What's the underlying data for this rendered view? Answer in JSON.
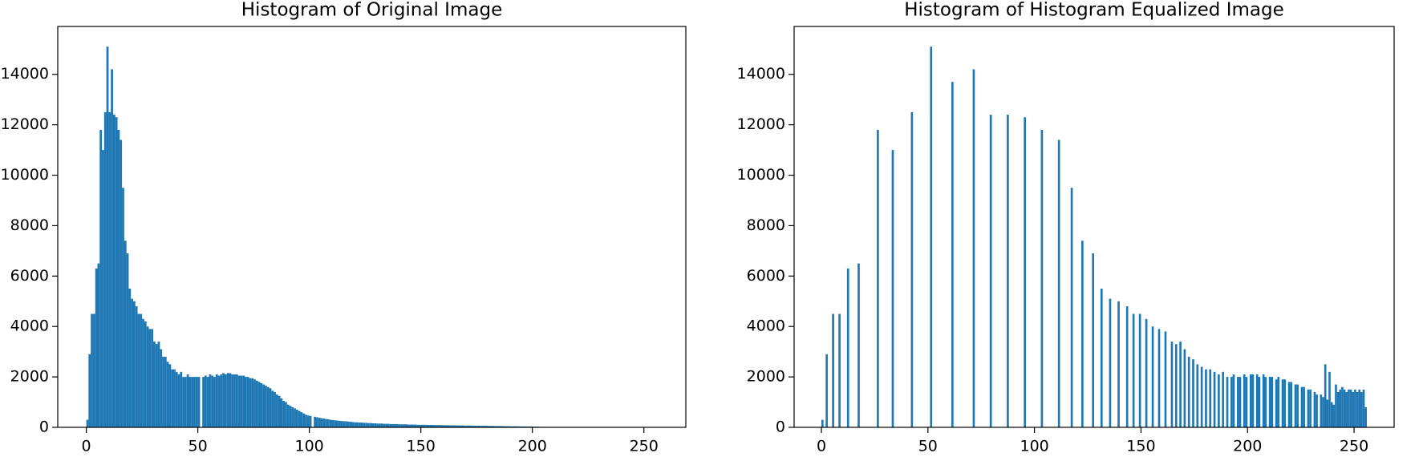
{
  "chart_data": [
    {
      "type": "histogram",
      "title": "Histogram of Original Image",
      "color": "#1f77b4",
      "bins": [
        0,
        1,
        2,
        3,
        4,
        5,
        6,
        7,
        8,
        9,
        10,
        11,
        12,
        13,
        14,
        15,
        16,
        17,
        18,
        19,
        20,
        21,
        22,
        23,
        24,
        25,
        26,
        27,
        28,
        29,
        30,
        31,
        32,
        33,
        34,
        35,
        36,
        37,
        38,
        39,
        40,
        41,
        42,
        43,
        44,
        45,
        46,
        47,
        48,
        49,
        50,
        51,
        52,
        53,
        54,
        55,
        56,
        57,
        58,
        59,
        60,
        61,
        62,
        63,
        64,
        65,
        66,
        67,
        68,
        69,
        70,
        71,
        72,
        73,
        74,
        75,
        76,
        77,
        78,
        79,
        80,
        81,
        82,
        83,
        84,
        85,
        86,
        87,
        88,
        89,
        90,
        91,
        92,
        93,
        94,
        95,
        96,
        97,
        98,
        99,
        100,
        101,
        102,
        103,
        104,
        105,
        106,
        107,
        108,
        109,
        110,
        111,
        112,
        113,
        114,
        115,
        116,
        117,
        118,
        119,
        120,
        121,
        122,
        123,
        124,
        125,
        126,
        127,
        128,
        129,
        130,
        131,
        132,
        133,
        134,
        135,
        136,
        137,
        138,
        139,
        140,
        141,
        142,
        143,
        144,
        145,
        146,
        147,
        148,
        149,
        150,
        151,
        152,
        153,
        154,
        155,
        156,
        157,
        158,
        159,
        160,
        161,
        162,
        163,
        164,
        165,
        166,
        167,
        168,
        169,
        170,
        171,
        172,
        173,
        174,
        175,
        176,
        177,
        178,
        179,
        180,
        181,
        182,
        183,
        184,
        185,
        186,
        187,
        188,
        189,
        190,
        191,
        192,
        193,
        194,
        195,
        196,
        197,
        198,
        199,
        200,
        201,
        202,
        203,
        204,
        205,
        206,
        207,
        208,
        209,
        210,
        211,
        212,
        213,
        214,
        215,
        216,
        217,
        218,
        219,
        220,
        221,
        222,
        223,
        224,
        225,
        226,
        227,
        228,
        229,
        230,
        231,
        232,
        233,
        234,
        235,
        236,
        237,
        238,
        239,
        240,
        241,
        242,
        243,
        244,
        245,
        246,
        247,
        248,
        249,
        250,
        251,
        252,
        253,
        254,
        255,
        256
      ],
      "values": [
        300,
        2900,
        4500,
        4500,
        6300,
        6500,
        11800,
        11000,
        12500,
        15100,
        12500,
        14200,
        12400,
        12300,
        11800,
        11400,
        9500,
        7400,
        6900,
        5500,
        5100,
        5000,
        4800,
        4500,
        4500,
        4300,
        4200,
        4000,
        3900,
        3900,
        3400,
        3300,
        3400,
        3100,
        2800,
        2800,
        2600,
        2500,
        2300,
        2300,
        2200,
        2100,
        2200,
        2000,
        2000,
        2100,
        2000,
        2000,
        2000,
        2000,
        2000,
        0,
        2000,
        2050,
        2000,
        2100,
        2050,
        2000,
        2100,
        2050,
        2100,
        2150,
        2100,
        2150,
        2150,
        2100,
        2100,
        2100,
        2050,
        2050,
        2050,
        2000,
        2000,
        1950,
        1950,
        1900,
        1850,
        1800,
        1750,
        1700,
        1650,
        1600,
        1550,
        1450,
        1400,
        1300,
        1250,
        1150,
        1050,
        1000,
        900,
        850,
        800,
        750,
        700,
        650,
        600,
        550,
        500,
        470,
        450,
        0,
        420,
        400,
        380,
        360,
        350,
        330,
        320,
        300,
        290,
        280,
        270,
        260,
        250,
        240,
        240,
        230,
        220,
        210,
        200,
        200,
        190,
        190,
        180,
        180,
        170,
        170,
        160,
        160,
        150,
        150,
        150,
        140,
        140,
        140,
        130,
        130,
        130,
        130,
        120,
        120,
        120,
        120,
        110,
        110,
        110,
        110,
        100,
        100,
        100,
        100,
        100,
        95,
        95,
        95,
        90,
        90,
        90,
        85,
        85,
        85,
        80,
        80,
        80,
        80,
        75,
        75,
        75,
        70,
        70,
        70,
        70,
        65,
        65,
        65,
        60,
        60,
        60,
        60,
        55,
        55,
        55,
        50,
        50,
        50,
        50,
        45,
        45,
        45,
        40,
        40,
        40,
        40,
        35,
        35,
        35,
        30,
        30,
        30,
        25,
        25,
        25,
        20,
        20,
        20,
        15,
        15,
        10,
        10,
        5,
        5,
        0,
        0,
        0,
        0,
        0,
        0,
        0,
        0,
        0,
        0,
        0,
        0,
        0,
        0,
        0,
        0,
        0,
        0,
        0,
        0,
        0,
        0,
        0,
        0,
        0,
        0,
        0,
        0,
        0,
        0,
        0,
        0,
        0,
        0,
        0,
        0,
        0,
        0,
        0,
        0,
        0,
        0,
        0,
        0
      ],
      "xlim": [
        -12.8,
        268.8
      ],
      "xticks": [
        0,
        50,
        100,
        150,
        200,
        250
      ],
      "ylim": [
        0,
        15900
      ],
      "yticks": [
        0,
        2000,
        4000,
        6000,
        8000,
        10000,
        12000,
        14000
      ]
    },
    {
      "type": "bar",
      "title": "Histogram of Histogram Equalized Image",
      "color": "#1f77b4",
      "x": [
        0,
        2,
        5,
        8,
        12,
        17,
        26,
        33,
        42,
        51,
        61,
        71,
        79,
        87,
        95,
        103,
        111,
        117,
        122,
        127,
        131,
        135,
        139,
        143,
        146,
        149,
        152,
        155,
        158,
        161,
        164,
        166,
        168,
        170,
        172,
        174,
        176,
        178,
        180,
        182,
        184,
        186,
        188,
        190,
        192,
        193,
        195,
        196,
        198,
        199,
        201,
        202,
        204,
        205,
        207,
        208,
        210,
        211,
        213,
        214,
        216,
        217,
        219,
        220,
        222,
        223,
        225,
        226,
        228,
        229,
        231,
        232,
        234,
        235,
        236,
        237,
        238,
        239,
        240,
        241,
        242,
        243,
        244,
        245,
        246,
        247,
        248,
        249,
        250,
        251,
        252,
        253,
        254,
        255
      ],
      "values": [
        300,
        2900,
        4500,
        4500,
        6300,
        6500,
        11800,
        11000,
        12500,
        15100,
        13700,
        14200,
        12400,
        12400,
        12300,
        11800,
        11400,
        9500,
        7400,
        6900,
        5500,
        5100,
        5000,
        4800,
        4500,
        4500,
        4300,
        4000,
        3900,
        3800,
        3400,
        3300,
        3400,
        3100,
        2800,
        2700,
        2500,
        2400,
        2300,
        2300,
        2200,
        2100,
        2200,
        2000,
        2000,
        2100,
        2000,
        2000,
        2100,
        2000,
        2100,
        2100,
        2100,
        2000,
        2100,
        2000,
        2000,
        2000,
        1900,
        2000,
        1900,
        1900,
        1800,
        1800,
        1700,
        1700,
        1600,
        1600,
        1500,
        1500,
        1400,
        1300,
        1300,
        1200,
        2500,
        1100,
        2200,
        1000,
        900,
        1700,
        1400,
        1500,
        1600,
        1500,
        1400,
        1500,
        1500,
        1400,
        1500,
        1400,
        1500,
        1400,
        1500,
        800
      ],
      "xlim": [
        -12.8,
        268.8
      ],
      "xticks": [
        0,
        50,
        100,
        150,
        200,
        250
      ],
      "ylim": [
        0,
        15900
      ],
      "yticks": [
        0,
        2000,
        4000,
        6000,
        8000,
        10000,
        12000,
        14000
      ]
    }
  ]
}
